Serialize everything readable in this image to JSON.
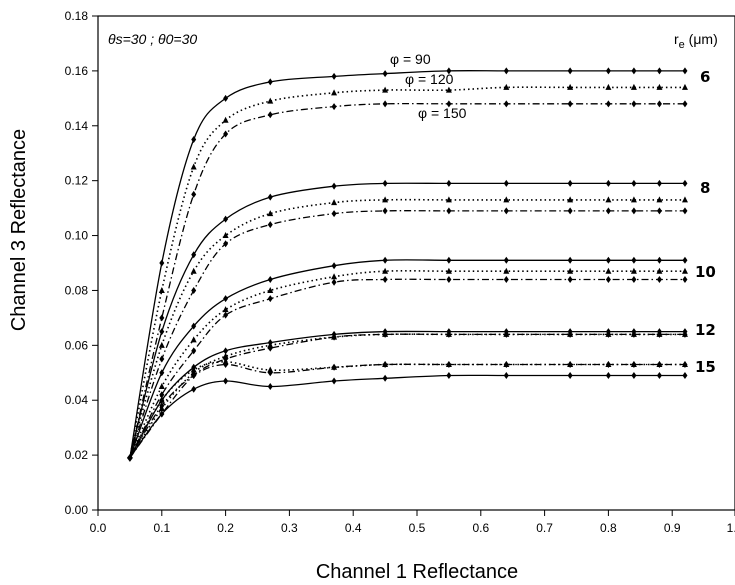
{
  "chart_data": {
    "type": "line",
    "title": "",
    "xlabel": "Channel 1 Reflectance",
    "ylabel": "Channel 3 Reflectance",
    "xlim": [
      0.0,
      1.0
    ],
    "ylim": [
      0.0,
      0.18
    ],
    "xticks": [
      "0.0",
      "0.1",
      "0.2",
      "0.3",
      "0.4",
      "0.5",
      "0.6",
      "0.7",
      "0.8",
      "0.9",
      "1.0"
    ],
    "yticks": [
      "0.00",
      "0.02",
      "0.04",
      "0.06",
      "0.08",
      "0.10",
      "0.12",
      "0.14",
      "0.16",
      "0.18"
    ],
    "grid": false,
    "legend": "none",
    "geometry_annotation": {
      "theta_s": "θs=30",
      "separator": " ; ",
      "theta_0": "θ0=30"
    },
    "re_header": "r",
    "re_header_sub": "e",
    "re_header_unit": " (μm)",
    "phi_labels": [
      "φ = 90",
      "φ = 120",
      "φ = 150"
    ],
    "re_labels": [
      "6",
      "8",
      "10",
      "12",
      "15"
    ],
    "series": [
      {
        "group": "6",
        "phi": 90,
        "style": "solid",
        "marker": "diamond",
        "x": [
          0.05,
          0.1,
          0.15,
          0.2,
          0.27,
          0.37,
          0.45,
          0.55,
          0.64,
          0.74,
          0.8,
          0.84,
          0.88,
          0.92
        ],
        "y": [
          0.019,
          0.09,
          0.135,
          0.15,
          0.156,
          0.158,
          0.159,
          0.16,
          0.16,
          0.16,
          0.16,
          0.16,
          0.16,
          0.16
        ]
      },
      {
        "group": "6",
        "phi": 120,
        "style": "dotted",
        "marker": "triangle",
        "x": [
          0.05,
          0.1,
          0.15,
          0.2,
          0.27,
          0.37,
          0.45,
          0.55,
          0.64,
          0.74,
          0.8,
          0.84,
          0.88,
          0.92
        ],
        "y": [
          0.019,
          0.08,
          0.125,
          0.142,
          0.149,
          0.152,
          0.153,
          0.153,
          0.154,
          0.154,
          0.154,
          0.154,
          0.154,
          0.154
        ]
      },
      {
        "group": "6",
        "phi": 150,
        "style": "dashdot",
        "marker": "diamond",
        "x": [
          0.05,
          0.1,
          0.15,
          0.2,
          0.27,
          0.37,
          0.45,
          0.55,
          0.64,
          0.74,
          0.8,
          0.84,
          0.88,
          0.92
        ],
        "y": [
          0.019,
          0.07,
          0.115,
          0.137,
          0.144,
          0.147,
          0.148,
          0.148,
          0.148,
          0.148,
          0.148,
          0.148,
          0.148,
          0.148
        ]
      },
      {
        "group": "8",
        "phi": 90,
        "style": "solid",
        "marker": "diamond",
        "x": [
          0.05,
          0.1,
          0.15,
          0.2,
          0.27,
          0.37,
          0.45,
          0.55,
          0.64,
          0.74,
          0.8,
          0.84,
          0.88,
          0.92
        ],
        "y": [
          0.019,
          0.065,
          0.093,
          0.106,
          0.114,
          0.118,
          0.119,
          0.119,
          0.119,
          0.119,
          0.119,
          0.119,
          0.119,
          0.119
        ]
      },
      {
        "group": "8",
        "phi": 120,
        "style": "dotted",
        "marker": "triangle",
        "x": [
          0.05,
          0.1,
          0.15,
          0.2,
          0.27,
          0.37,
          0.45,
          0.55,
          0.64,
          0.74,
          0.8,
          0.84,
          0.88,
          0.92
        ],
        "y": [
          0.019,
          0.06,
          0.087,
          0.1,
          0.108,
          0.112,
          0.113,
          0.113,
          0.113,
          0.113,
          0.113,
          0.113,
          0.113,
          0.113
        ]
      },
      {
        "group": "8",
        "phi": 150,
        "style": "dashdot",
        "marker": "diamond",
        "x": [
          0.05,
          0.1,
          0.15,
          0.2,
          0.27,
          0.37,
          0.45,
          0.55,
          0.64,
          0.74,
          0.8,
          0.84,
          0.88,
          0.92
        ],
        "y": [
          0.019,
          0.055,
          0.08,
          0.097,
          0.104,
          0.108,
          0.109,
          0.109,
          0.109,
          0.109,
          0.109,
          0.109,
          0.109,
          0.109
        ]
      },
      {
        "group": "10",
        "phi": 90,
        "style": "solid",
        "marker": "diamond",
        "x": [
          0.05,
          0.1,
          0.15,
          0.2,
          0.27,
          0.37,
          0.45,
          0.55,
          0.64,
          0.74,
          0.8,
          0.84,
          0.88,
          0.92
        ],
        "y": [
          0.019,
          0.05,
          0.067,
          0.077,
          0.084,
          0.089,
          0.091,
          0.091,
          0.091,
          0.091,
          0.091,
          0.091,
          0.091,
          0.091
        ]
      },
      {
        "group": "10",
        "phi": 120,
        "style": "dotted",
        "marker": "triangle",
        "x": [
          0.05,
          0.1,
          0.15,
          0.2,
          0.27,
          0.37,
          0.45,
          0.55,
          0.64,
          0.74,
          0.8,
          0.84,
          0.88,
          0.92
        ],
        "y": [
          0.019,
          0.045,
          0.062,
          0.073,
          0.08,
          0.085,
          0.087,
          0.087,
          0.087,
          0.087,
          0.087,
          0.087,
          0.087,
          0.087
        ]
      },
      {
        "group": "10",
        "phi": 150,
        "style": "dashdot",
        "marker": "diamond",
        "x": [
          0.05,
          0.1,
          0.15,
          0.2,
          0.27,
          0.37,
          0.45,
          0.55,
          0.64,
          0.74,
          0.8,
          0.84,
          0.88,
          0.92
        ],
        "y": [
          0.019,
          0.042,
          0.058,
          0.071,
          0.077,
          0.083,
          0.084,
          0.084,
          0.084,
          0.084,
          0.084,
          0.084,
          0.084,
          0.084
        ]
      },
      {
        "group": "12",
        "phi": 90,
        "style": "solid",
        "marker": "diamond",
        "x": [
          0.05,
          0.1,
          0.15,
          0.2,
          0.27,
          0.37,
          0.45,
          0.55,
          0.64,
          0.74,
          0.8,
          0.84,
          0.88,
          0.92
        ],
        "y": [
          0.019,
          0.04,
          0.052,
          0.058,
          0.061,
          0.064,
          0.065,
          0.065,
          0.065,
          0.065,
          0.065,
          0.065,
          0.065,
          0.065
        ]
      },
      {
        "group": "12",
        "phi": 120,
        "style": "dotted",
        "marker": "triangle",
        "x": [
          0.05,
          0.1,
          0.15,
          0.2,
          0.27,
          0.37,
          0.45,
          0.55,
          0.64,
          0.74,
          0.8,
          0.84,
          0.88,
          0.92
        ],
        "y": [
          0.019,
          0.037,
          0.05,
          0.056,
          0.06,
          0.063,
          0.064,
          0.064,
          0.064,
          0.064,
          0.064,
          0.064,
          0.064,
          0.064
        ]
      },
      {
        "group": "12",
        "phi": 150,
        "style": "dashdot",
        "marker": "diamond",
        "x": [
          0.05,
          0.1,
          0.15,
          0.2,
          0.27,
          0.37,
          0.45,
          0.55,
          0.64,
          0.74,
          0.8,
          0.84,
          0.88,
          0.92
        ],
        "y": [
          0.019,
          0.035,
          0.049,
          0.055,
          0.059,
          0.063,
          0.064,
          0.064,
          0.064,
          0.064,
          0.064,
          0.064,
          0.064,
          0.064
        ]
      },
      {
        "group": "15",
        "phi": 90,
        "style": "solid",
        "marker": "diamond",
        "x": [
          0.05,
          0.1,
          0.15,
          0.2,
          0.27,
          0.37,
          0.45,
          0.55,
          0.64,
          0.74,
          0.8,
          0.84,
          0.88,
          0.92
        ],
        "y": [
          0.019,
          0.035,
          0.044,
          0.047,
          0.045,
          0.047,
          0.048,
          0.049,
          0.049,
          0.049,
          0.049,
          0.049,
          0.049,
          0.049
        ]
      },
      {
        "group": "15",
        "phi": 120,
        "style": "dotted",
        "marker": "triangle",
        "x": [
          0.05,
          0.1,
          0.15,
          0.2,
          0.27,
          0.37,
          0.45,
          0.55,
          0.64,
          0.74,
          0.8,
          0.84,
          0.88,
          0.92
        ],
        "y": [
          0.019,
          0.04,
          0.051,
          0.054,
          0.051,
          0.052,
          0.053,
          0.053,
          0.053,
          0.053,
          0.053,
          0.053,
          0.053,
          0.053
        ]
      },
      {
        "group": "15",
        "phi": 150,
        "style": "dashdot",
        "marker": "diamond",
        "x": [
          0.05,
          0.1,
          0.15,
          0.2,
          0.27,
          0.37,
          0.45,
          0.55,
          0.64,
          0.74,
          0.8,
          0.84,
          0.88,
          0.92
        ],
        "y": [
          0.019,
          0.038,
          0.049,
          0.053,
          0.05,
          0.052,
          0.053,
          0.053,
          0.053,
          0.053,
          0.053,
          0.053,
          0.053,
          0.053
        ]
      }
    ]
  }
}
